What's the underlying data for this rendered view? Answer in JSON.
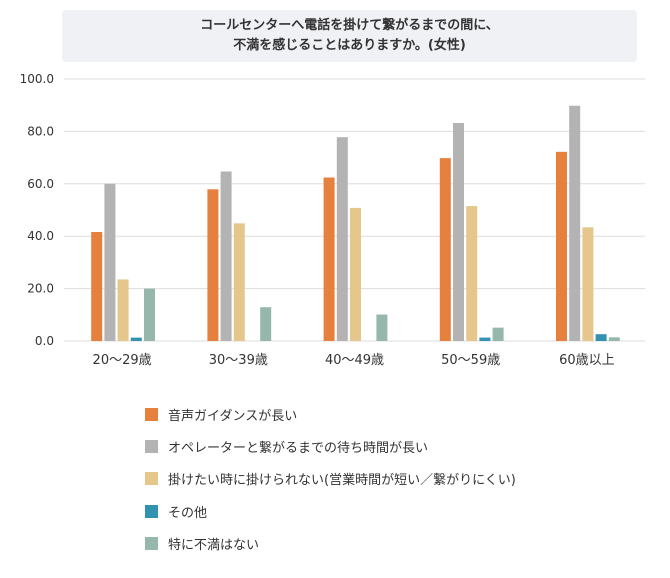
{
  "chart_data": {
    "type": "bar",
    "title_lines": [
      "コールセンターへ電話を掛けて繋がるまでの間に、",
      "不満を感じることはありますか。(女性)"
    ],
    "categories": [
      "20〜29歳",
      "30〜39歳",
      "40〜49歳",
      "50〜59歳",
      "60歳以上"
    ],
    "series": [
      {
        "name": "音声ガイダンスが長い",
        "color": "#e5803d",
        "values": [
          41.6,
          57.9,
          62.4,
          69.8,
          72.2
        ]
      },
      {
        "name": "オペレーターと繋がるまでの待ち時間が長い",
        "color": "#b3b3b3",
        "values": [
          60.0,
          64.7,
          77.8,
          83.2,
          89.8
        ]
      },
      {
        "name": "掛けたい時に掛けられない(営業時間が短い／繋がりにくい)",
        "color": "#e5c78c",
        "values": [
          23.5,
          44.9,
          50.8,
          51.5,
          43.4
        ]
      },
      {
        "name": "その他",
        "color": "#3293b0",
        "values": [
          1.3,
          0,
          0,
          1.3,
          2.6
        ]
      },
      {
        "name": "特に不満はない",
        "color": "#96b8ac",
        "values": [
          20.0,
          12.9,
          10.1,
          5.1,
          1.4
        ]
      }
    ],
    "yticks": [
      "0.0",
      "20.0",
      "40.0",
      "60.0",
      "80.0",
      "100.0"
    ],
    "ylim": [
      0,
      100
    ],
    "grid": true,
    "legend_position": "bottom"
  }
}
